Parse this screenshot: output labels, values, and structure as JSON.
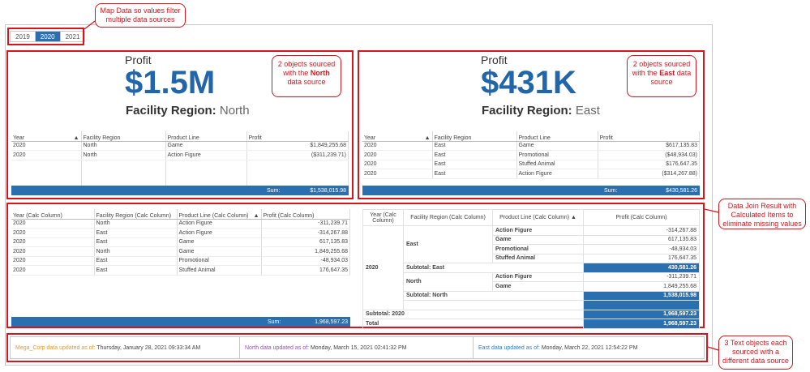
{
  "callouts": {
    "map": "Map Data so values filter multiple data sources",
    "north_pre": "2 objects sourced with the ",
    "north_bold": "North",
    "north_post": " data source",
    "east_pre": "2 objects sourced with the ",
    "east_bold": "East",
    "east_post": " data source",
    "join": "Data Join Result with Calculated Items to eliminate missing values",
    "text": "3 Text objects each sourced with a different data source"
  },
  "year_tabs": [
    "2019",
    "2020",
    "2021"
  ],
  "selected_year": "2020",
  "north": {
    "kpi_title": "Profit",
    "kpi_value": "$1.5M",
    "region_label": "Facility Region:",
    "region_value": "North",
    "headers": [
      "Year",
      "Facility Region",
      "Product Line",
      "Profit"
    ],
    "rows": [
      [
        "2020",
        "North",
        "Game",
        "$1,849,255.68"
      ],
      [
        "2020",
        "North",
        "Action Figure",
        "($311,239.71)"
      ]
    ],
    "sum_label": "Sum:",
    "sum_value": "$1,538,015.98"
  },
  "east": {
    "kpi_title": "Profit",
    "kpi_value": "$431K",
    "region_label": "Facility Region:",
    "region_value": "East",
    "headers": [
      "Year",
      "Facility Region",
      "Product Line",
      "Profit"
    ],
    "rows": [
      [
        "2020",
        "East",
        "Game",
        "$617,135.83"
      ],
      [
        "2020",
        "East",
        "Promotional",
        "($48,934.03)"
      ],
      [
        "2020",
        "East",
        "Stuffed Animal",
        "$176,647.35"
      ],
      [
        "2020",
        "East",
        "Action Figure",
        "($314,267.88)"
      ]
    ],
    "sum_label": "Sum:",
    "sum_value": "$430,581.26"
  },
  "join_table": {
    "headers": [
      "Year (Calc Column)",
      "Facility Region (Calc Column)",
      "Product Line (Calc Column)",
      "Profit (Calc Column)"
    ],
    "rows": [
      [
        "2020",
        "North",
        "Action Figure",
        "-311,239.71"
      ],
      [
        "2020",
        "East",
        "Action Figure",
        "-314,267.88"
      ],
      [
        "2020",
        "East",
        "Game",
        "617,135.83"
      ],
      [
        "2020",
        "North",
        "Game",
        "1,849,255.68"
      ],
      [
        "2020",
        "East",
        "Promotional",
        "-48,934.03"
      ],
      [
        "2020",
        "East",
        "Stuffed Animal",
        "176,647.35"
      ]
    ],
    "sum_label": "Sum:",
    "sum_value": "1,968,597.23"
  },
  "crosstab": {
    "headers": [
      "Year (Calc Column)",
      "Facility Region (Calc Column)",
      "Product Line (Calc Column)",
      "Profit (Calc Column)"
    ],
    "year": "2020",
    "east": "East",
    "east_rows": [
      [
        "Action Figure",
        "-314,267.88"
      ],
      [
        "Game",
        "617,135.83"
      ],
      [
        "Promotional",
        "-48,934.03"
      ],
      [
        "Stuffed Animal",
        "176,647.35"
      ]
    ],
    "subtotal_east": "Subtotal: East",
    "subtotal_east_value": "430,581.26",
    "north": "North",
    "north_rows": [
      [
        "Action Figure",
        "-311,239.71"
      ],
      [
        "Game",
        "1,849,255.68"
      ]
    ],
    "subtotal_north": "Subtotal: North",
    "subtotal_north_value": "1,538,015.98",
    "subtotal_year": "Subtotal: 2020",
    "subtotal_year_value": "1,968,597.23",
    "total": "Total",
    "total_value": "1,968,597.23"
  },
  "footer": {
    "mega_label": "Mega_Corp data updated as of:",
    "mega_value": "Thursday, January 28, 2021 09:33:34 AM",
    "north_label": "North data updated as of:",
    "north_value": "Monday, March 15, 2021 02:41:32 PM",
    "east_label": "East data updated as of:",
    "east_value": "Monday, March 22, 2021 12:54:22 PM",
    "colors": {
      "mega": "#e59a2a",
      "north": "#9b4fb0",
      "east": "#2a7fd0"
    }
  }
}
